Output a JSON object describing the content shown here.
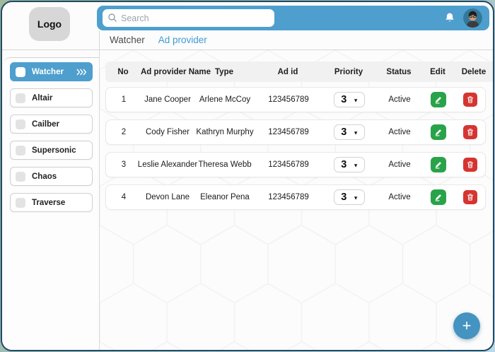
{
  "logo": {
    "label": "Logo"
  },
  "search": {
    "placeholder": "Search"
  },
  "tabs": [
    {
      "label": "Watcher",
      "active": false
    },
    {
      "label": "Ad provider",
      "active": true
    }
  ],
  "sidebar": [
    {
      "label": "Watcher",
      "active": true
    },
    {
      "label": "Altair",
      "active": false
    },
    {
      "label": "Cailber",
      "active": false
    },
    {
      "label": "Supersonic",
      "active": false
    },
    {
      "label": "Chaos",
      "active": false
    },
    {
      "label": "Traverse",
      "active": false
    }
  ],
  "table": {
    "headers": [
      "No",
      "Ad provider Name",
      "Type",
      "Ad id",
      "Priority",
      "Status",
      "Edit",
      "Delete"
    ],
    "rows": [
      {
        "no": "1",
        "name": "Jane Cooper",
        "type": "Arlene McCoy",
        "ad_id": "123456789",
        "priority": "3",
        "status": "Active"
      },
      {
        "no": "2",
        "name": "Cody Fisher",
        "type": "Kathryn Murphy",
        "ad_id": "123456789",
        "priority": "3",
        "status": "Active"
      },
      {
        "no": "3",
        "name": "Leslie Alexander",
        "type": "Theresa Webb",
        "ad_id": "123456789",
        "priority": "3",
        "status": "Active"
      },
      {
        "no": "4",
        "name": "Devon Lane",
        "type": "Eleanor Pena",
        "ad_id": "123456789",
        "priority": "3",
        "status": "Active"
      }
    ]
  },
  "fab": {
    "label": "+"
  },
  "icons": {
    "caret_down": "▼"
  },
  "colors": {
    "accent_blue": "#4e9fce",
    "tab_active_blue": "#3d9cd3",
    "edit_green": "#29a34a",
    "delete_red": "#d53531",
    "fab_blue": "#4493c0",
    "frame_border": "#214b66",
    "table_header_bg": "#f1f1f2"
  }
}
